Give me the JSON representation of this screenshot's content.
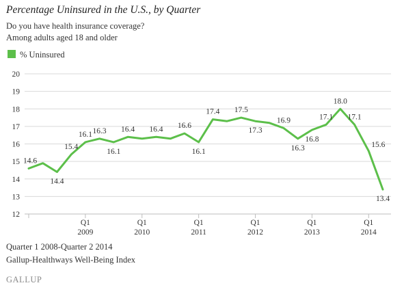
{
  "title": "Percentage Uninsured in the U.S., by Quarter",
  "subtitle_1": "Do you have health insurance coverage?",
  "subtitle_2": "Among adults aged 18 and older",
  "legend_label": "% Uninsured",
  "footer_1": "Quarter 1 2008-Quarter 2 2014",
  "footer_2": "Gallup-Healthways Well-Being Index",
  "brand": "GALLUP",
  "colors": {
    "line": "#5cbf4a",
    "grid": "#d9d9d9",
    "axis": "#bdbdbd",
    "text": "#333333"
  },
  "chart_data": {
    "type": "line",
    "ylim": [
      12,
      20
    ],
    "yticks": [
      12,
      13,
      14,
      15,
      16,
      17,
      18,
      19,
      20
    ],
    "grid": true,
    "legend": "top-left",
    "x": [
      "Q1 2008",
      "Q2 2008",
      "Q3 2008",
      "Q4 2008",
      "Q1 2009",
      "Q2 2009",
      "Q3 2009",
      "Q4 2009",
      "Q1 2010",
      "Q2 2010",
      "Q3 2010",
      "Q4 2010",
      "Q1 2011",
      "Q2 2011",
      "Q3 2011",
      "Q4 2011",
      "Q1 2012",
      "Q2 2012",
      "Q3 2012",
      "Q4 2012",
      "Q1 2013",
      "Q2 2013",
      "Q3 2013",
      "Q4 2013",
      "Q1 2014",
      "Q2 2014"
    ],
    "xtick_labels": [
      {
        "index": 4,
        "line1": "Q1",
        "line2": "2009"
      },
      {
        "index": 8,
        "line1": "Q1",
        "line2": "2010"
      },
      {
        "index": 12,
        "line1": "Q1",
        "line2": "2011"
      },
      {
        "index": 16,
        "line1": "Q1",
        "line2": "2012"
      },
      {
        "index": 20,
        "line1": "Q1",
        "line2": "2013"
      },
      {
        "index": 24,
        "line1": "Q1",
        "line2": "2014"
      }
    ],
    "series": [
      {
        "name": "% Uninsured",
        "values": [
          14.6,
          14.9,
          14.4,
          15.4,
          16.1,
          16.3,
          16.1,
          16.4,
          16.3,
          16.4,
          16.3,
          16.6,
          16.1,
          17.4,
          17.3,
          17.5,
          17.3,
          17.2,
          16.9,
          16.3,
          16.8,
          17.1,
          18.0,
          17.1,
          15.6,
          13.4
        ]
      }
    ],
    "data_labels": [
      {
        "index": 0,
        "text": "14.6",
        "pos": "above"
      },
      {
        "index": 2,
        "text": "14.4",
        "pos": "below"
      },
      {
        "index": 3,
        "text": "15.4",
        "pos": "above"
      },
      {
        "index": 4,
        "text": "16.1",
        "pos": "above"
      },
      {
        "index": 5,
        "text": "16.3",
        "pos": "above"
      },
      {
        "index": 6,
        "text": "16.1",
        "pos": "below"
      },
      {
        "index": 7,
        "text": "16.4",
        "pos": "above"
      },
      {
        "index": 9,
        "text": "16.4",
        "pos": "above"
      },
      {
        "index": 11,
        "text": "16.6",
        "pos": "above"
      },
      {
        "index": 12,
        "text": "16.1",
        "pos": "below"
      },
      {
        "index": 13,
        "text": "17.4",
        "pos": "above"
      },
      {
        "index": 15,
        "text": "17.5",
        "pos": "above"
      },
      {
        "index": 16,
        "text": "17.3",
        "pos": "below"
      },
      {
        "index": 18,
        "text": "16.9",
        "pos": "above"
      },
      {
        "index": 19,
        "text": "16.3",
        "pos": "below"
      },
      {
        "index": 20,
        "text": "16.8",
        "pos": "below"
      },
      {
        "index": 21,
        "text": "17.1",
        "pos": "above"
      },
      {
        "index": 22,
        "text": "18.0",
        "pos": "above"
      },
      {
        "index": 23,
        "text": "17.1",
        "pos": "above"
      },
      {
        "index": 24,
        "text": "15.6",
        "pos": "above-right"
      },
      {
        "index": 25,
        "text": "13.4",
        "pos": "below"
      }
    ]
  }
}
